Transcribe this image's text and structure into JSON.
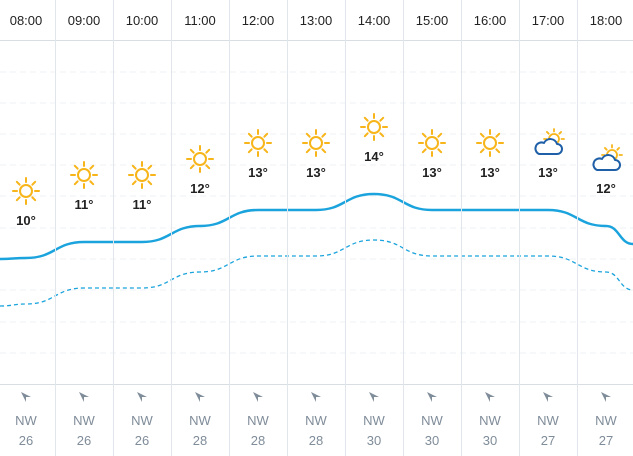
{
  "forecast": {
    "hours": [
      {
        "time": "08:00",
        "temp": "10°",
        "icon": "sun-icon",
        "wind_dir": "NW",
        "wind_speed": "26"
      },
      {
        "time": "09:00",
        "temp": "11°",
        "icon": "sun-icon",
        "wind_dir": "NW",
        "wind_speed": "26"
      },
      {
        "time": "10:00",
        "temp": "11°",
        "icon": "sun-icon",
        "wind_dir": "NW",
        "wind_speed": "26"
      },
      {
        "time": "11:00",
        "temp": "12°",
        "icon": "sun-icon",
        "wind_dir": "NW",
        "wind_speed": "28"
      },
      {
        "time": "12:00",
        "temp": "13°",
        "icon": "sun-icon",
        "wind_dir": "NW",
        "wind_speed": "28"
      },
      {
        "time": "13:00",
        "temp": "13°",
        "icon": "sun-icon",
        "wind_dir": "NW",
        "wind_speed": "28"
      },
      {
        "time": "14:00",
        "temp": "14°",
        "icon": "sun-icon",
        "wind_dir": "NW",
        "wind_speed": "30"
      },
      {
        "time": "15:00",
        "temp": "13°",
        "icon": "sun-icon",
        "wind_dir": "NW",
        "wind_speed": "30"
      },
      {
        "time": "16:00",
        "temp": "13°",
        "icon": "sun-icon",
        "wind_dir": "NW",
        "wind_speed": "30"
      },
      {
        "time": "17:00",
        "temp": "13°",
        "icon": "partly-cloudy-icon",
        "wind_dir": "NW",
        "wind_speed": "27"
      },
      {
        "time": "18:00",
        "temp": "12°",
        "icon": "partly-cloudy-icon",
        "wind_dir": "NW",
        "wind_speed": "27"
      }
    ]
  },
  "colors": {
    "temp_line": "#1aa3dc",
    "sun": "#f7b519",
    "cloud": "#1f5fa8",
    "grid": "#e1e6ec",
    "wind": "#7f8c99"
  }
}
